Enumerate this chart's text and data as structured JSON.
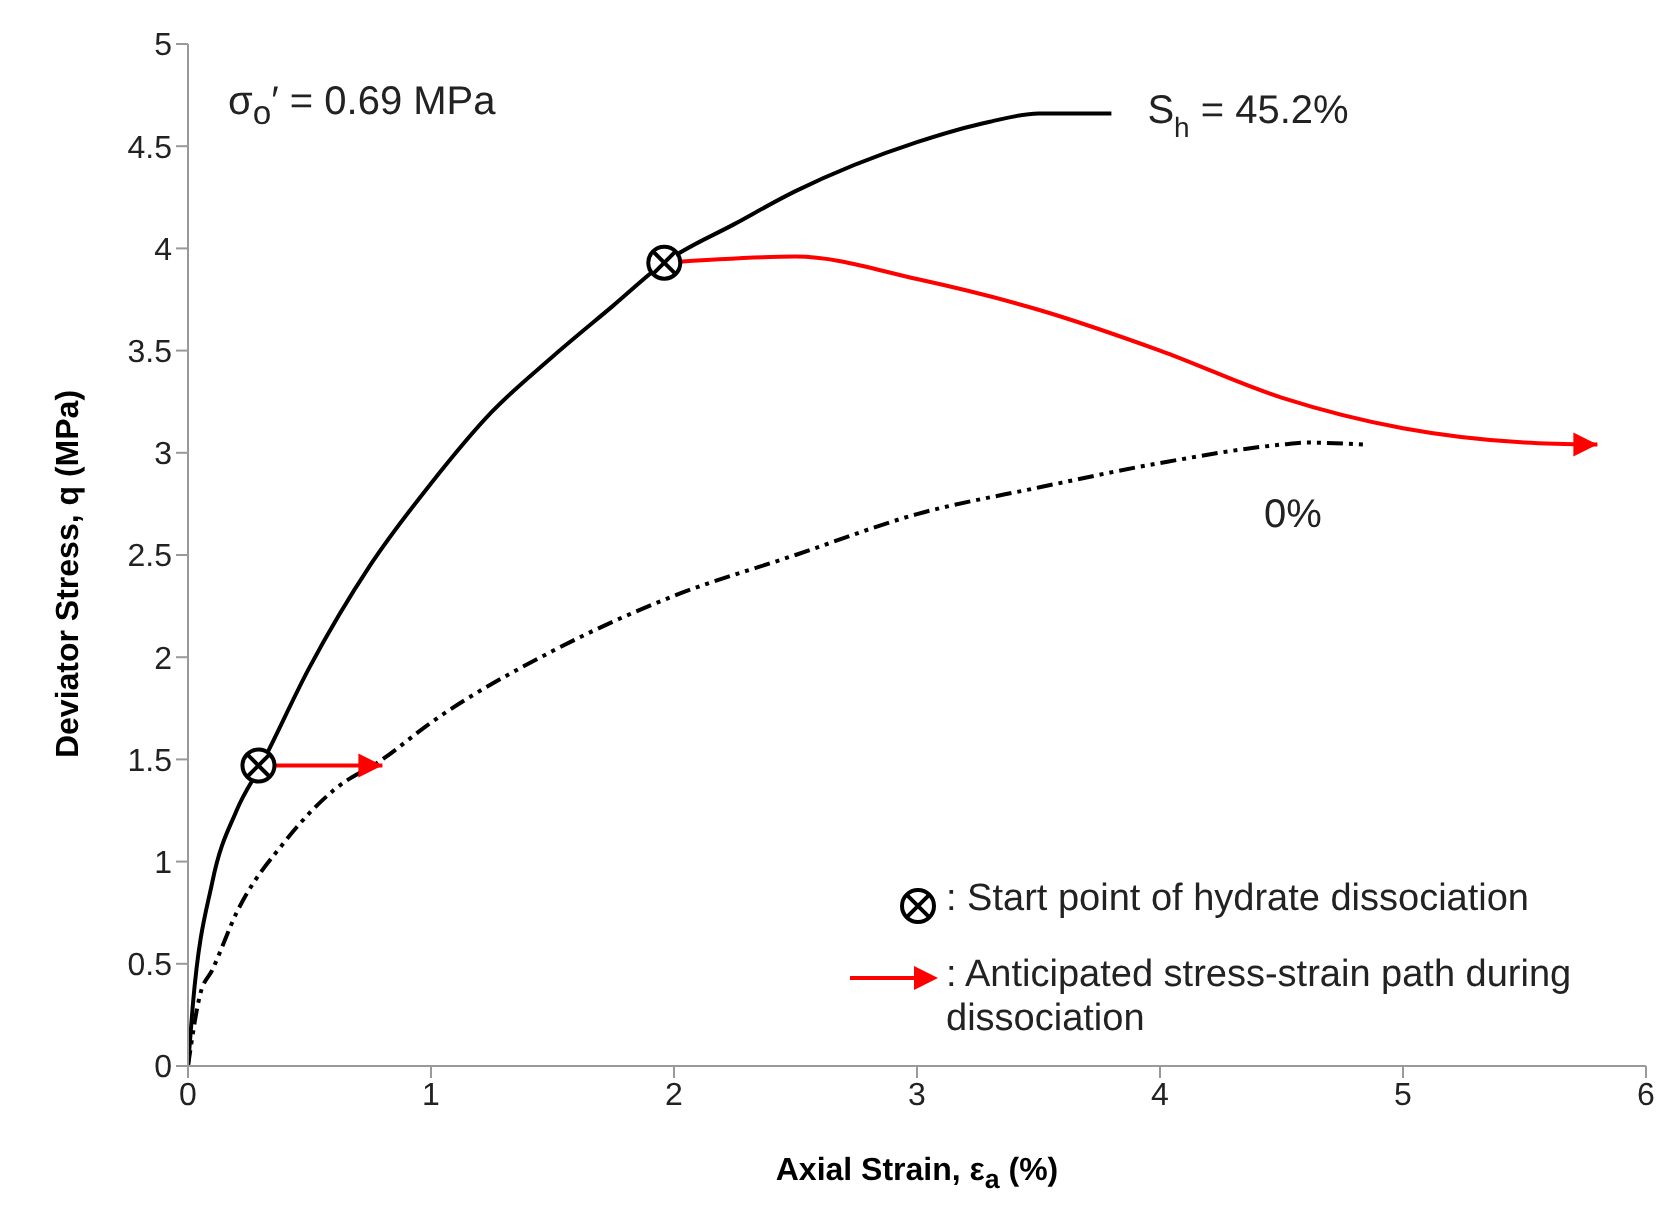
{
  "chart_data": {
    "type": "line",
    "xlabel": "Axial Strain, ε$_{a}$ (%)",
    "ylabel": "Deviator Stress, q (MPa)",
    "xlim": [
      0,
      6
    ],
    "xticks": [
      0,
      1,
      2,
      3,
      4,
      5,
      6
    ],
    "ylim": [
      0,
      5
    ],
    "yticks": [
      0,
      0.5,
      1,
      1.5,
      2,
      2.5,
      3,
      3.5,
      4,
      4.5,
      5
    ],
    "grid": false,
    "legend": "bottom right",
    "annotations": [
      "σ$_{o}$′ = 0.69 MPa"
    ],
    "series": [
      {
        "name": "S$_{h}$ = 45.2%",
        "color": "#000000",
        "line_style": "solid",
        "marker": "none",
        "x": [
          0,
          0.02,
          0.1,
          0.2,
          0.3,
          0.5,
          0.75,
          1,
          1.25,
          1.5,
          1.75,
          1.96,
          2.25,
          2.5,
          3,
          3.3,
          3.5,
          3.8
        ],
        "values": [
          0,
          0.3,
          0.9,
          1.25,
          1.47,
          1.95,
          2.45,
          2.85,
          3.2,
          3.47,
          3.72,
          3.93,
          4.12,
          4.28,
          4.52,
          4.62,
          4.66,
          4.66
        ]
      },
      {
        "name": "0%",
        "color": "#000000",
        "line_style": "dashed",
        "marker": "none",
        "x": [
          0,
          0.05,
          0.1,
          0.2,
          0.4,
          0.6,
          0.8,
          1,
          1.5,
          2,
          2.5,
          3,
          3.5,
          4,
          4.5,
          4.6,
          4.84
        ],
        "values": [
          0,
          0.35,
          0.47,
          0.75,
          1.1,
          1.35,
          1.5,
          1.68,
          2.03,
          2.3,
          2.5,
          2.7,
          2.83,
          2.95,
          3.04,
          3.05,
          3.04
        ]
      },
      {
        "name": ": Anticipated stress-strain path during dissociation",
        "color": "#ff0000",
        "line_style": "solid",
        "x": [
          0.29,
          0.8,
          1.0,
          1.96,
          2.5,
          3,
          3.5,
          4,
          4.5,
          5,
          5.5,
          5.8
        ],
        "values": [
          1.47,
          1.47,
          null,
          3.93,
          3.96,
          3.85,
          3.7,
          3.5,
          3.27,
          3.12,
          3.05,
          3.04
        ]
      },
      {
        "type": "scatter",
        "name": ": Start point of hydrate dissociation",
        "color": "#000000",
        "marker": "circle",
        "x": [
          0.29,
          1.96
        ],
        "values": [
          1.47,
          3.93
        ]
      }
    ]
  }
}
